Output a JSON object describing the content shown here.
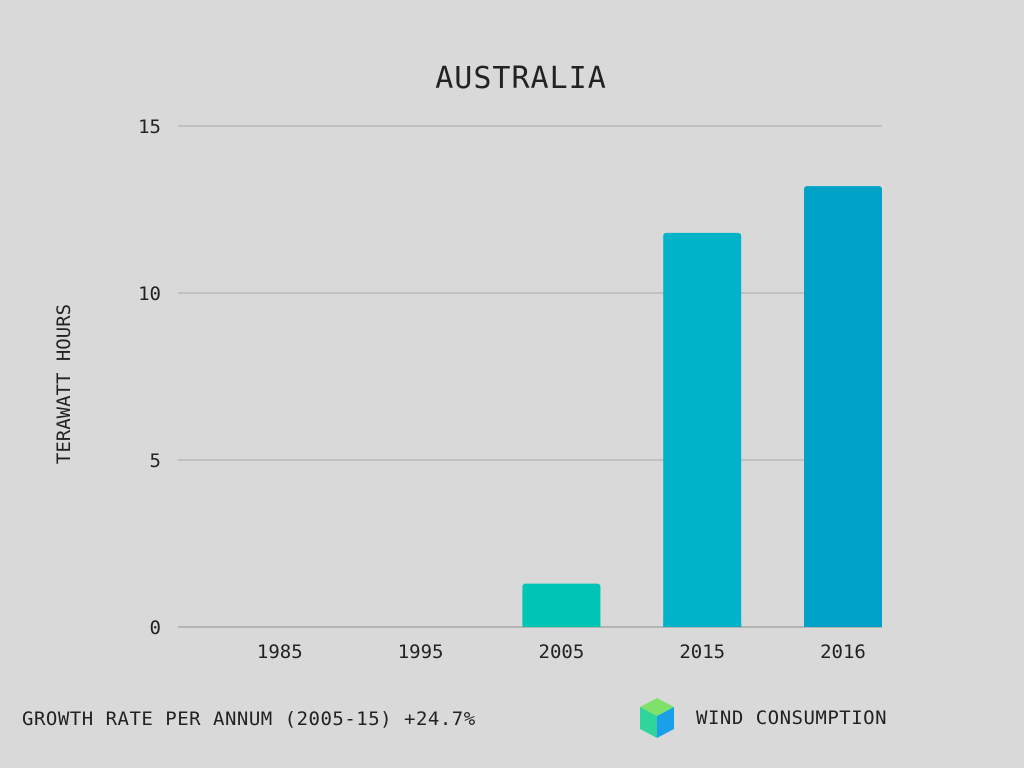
{
  "chart_data": {
    "type": "bar",
    "title": "AUSTRALIA",
    "ylabel": "TERAWATT HOURS",
    "xlabel": "",
    "categories": [
      "1985",
      "1995",
      "2005",
      "2015",
      "2016"
    ],
    "values": [
      0,
      0,
      1.3,
      11.8,
      13.2
    ],
    "bar_colors": [
      "#00c9b2",
      "#00c4bb",
      "#00c4b4",
      "#00b3c9",
      "#00a2c8"
    ],
    "ylim": [
      0,
      15
    ],
    "yticks": [
      0,
      5,
      10,
      15
    ],
    "grid": true,
    "legend": {
      "label": "WIND CONSUMPTION",
      "placement": "bottom-right",
      "icon": "cube-icon",
      "colors": [
        "#7fe06a",
        "#2fd59a",
        "#1aa0e8"
      ]
    },
    "note": "GROWTH RATE PER ANNUM (2005-15) +24.7%"
  }
}
